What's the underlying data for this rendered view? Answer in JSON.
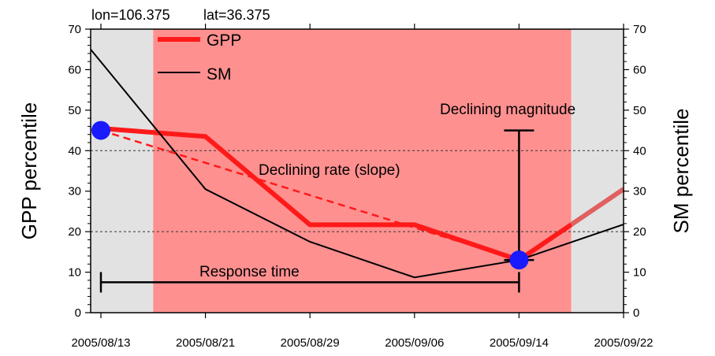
{
  "chart_data": {
    "type": "line",
    "header": {
      "lon": "lon=106.375",
      "lat": "lat=36.375"
    },
    "ylabel_left": "GPP percentile",
    "ylabel_right": "SM percentile",
    "ylim": [
      0,
      70
    ],
    "yticks": [
      0,
      10,
      20,
      30,
      40,
      50,
      60,
      70
    ],
    "xlim": [
      "2005/08/13",
      "2005/09/22"
    ],
    "xticks": [
      "2005/08/13",
      "2005/08/21",
      "2005/08/29",
      "2005/09/06",
      "2005/09/14",
      "2005/09/22"
    ],
    "reference_lines": [
      40,
      20
    ],
    "shaded_periods": [
      {
        "from": "2005/08/13",
        "to": "2005/08/17",
        "color": "#e2e2e2"
      },
      {
        "from": "2005/08/17",
        "to": "2005/09/18",
        "color": "#ff9090"
      },
      {
        "from": "2005/09/18",
        "to": "2005/09/22",
        "color": "#e2e2e2"
      }
    ],
    "series": [
      {
        "name": "GPP",
        "color": "#ff1a1a",
        "x": [
          "2005/08/13",
          "2005/08/21",
          "2005/08/29",
          "2005/09/06",
          "2005/09/14",
          "2005/09/22"
        ],
        "y": [
          45.5,
          43.5,
          21.7,
          21.7,
          13.0,
          30.5
        ]
      },
      {
        "name": "SM",
        "color": "#000000",
        "x": [
          "2005/08/13",
          "2005/08/21",
          "2005/08/29",
          "2005/09/06",
          "2005/09/14",
          "2005/09/22"
        ],
        "y": [
          65.0,
          30.5,
          17.5,
          8.7,
          13.0,
          21.8
        ]
      }
    ],
    "markers": [
      {
        "x": "2005/08/13",
        "y": 45.0,
        "color": "#1a1aff"
      },
      {
        "x": "2005/09/14",
        "y": 13.0,
        "color": "#1a1aff"
      }
    ],
    "slope_line": {
      "from": {
        "x": "2005/08/13",
        "y": 45.0
      },
      "to": {
        "x": "2005/09/14",
        "y": 13.0
      }
    },
    "annotations": {
      "declining_rate": "Declining rate (slope)",
      "declining_magnitude": "Declining magnitude",
      "response_time": "Response time"
    },
    "magnitude_bar": {
      "x": "2005/09/14",
      "from_y": 45.0,
      "to_y": 13.0
    },
    "response_bar": {
      "from": "2005/08/13",
      "to": "2005/09/14",
      "y": 7.5
    }
  }
}
